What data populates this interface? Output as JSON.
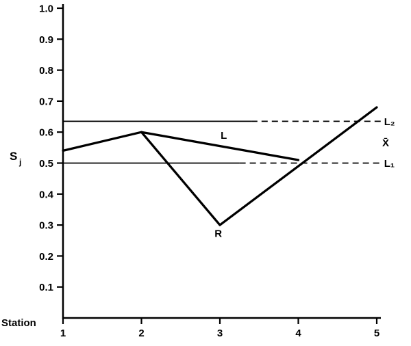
{
  "figure": {
    "xlabel": "Station",
    "ylabel_main": "S",
    "ylabel_sub": "j"
  },
  "chart_data": {
    "type": "line",
    "title": "",
    "xlabel": "Station",
    "ylabel": "Sj",
    "xlim": [
      1,
      5
    ],
    "ylim": [
      0,
      1.0
    ],
    "grid": false,
    "ink_color": "#000000",
    "x_ticks": [
      1,
      2,
      3,
      4,
      5
    ],
    "x_tick_labels": [
      "1",
      "2",
      "3",
      "4",
      "5"
    ],
    "y_ticks": [
      0.1,
      0.2,
      0.3,
      0.4,
      0.5,
      0.6,
      0.7,
      0.8,
      0.9,
      1.0
    ],
    "y_tick_labels": [
      "0.1",
      "0.2",
      "0.3",
      "0.4",
      "0.5",
      "0.6",
      "0.7",
      "0.8",
      "0.9",
      "1.0"
    ],
    "series": [
      {
        "name": "L",
        "label": "L",
        "x": [
          1,
          2,
          4
        ],
        "y": [
          0.54,
          0.6,
          0.51
        ],
        "label_at": {
          "x": 3.05,
          "y": 0.578
        }
      },
      {
        "name": "R",
        "label": "R",
        "x": [
          2,
          3,
          5
        ],
        "y": [
          0.6,
          0.3,
          0.68
        ],
        "label_at": {
          "x": 2.98,
          "y": 0.262
        }
      }
    ],
    "reference_lines": [
      {
        "name": "L2",
        "label": "L₂",
        "y": 0.635,
        "solid_from_x": 1,
        "solid_to_x": 3.4,
        "dashed_to_x": 5.05
      },
      {
        "name": "L1",
        "label": "L₁",
        "y": 0.5,
        "solid_from_x": 1,
        "solid_to_x": 3.25,
        "dashed_to_x": 5.05
      }
    ],
    "annotations": [
      {
        "name": "mean",
        "text": "X̄",
        "x": 5.07,
        "y": 0.565
      }
    ]
  }
}
